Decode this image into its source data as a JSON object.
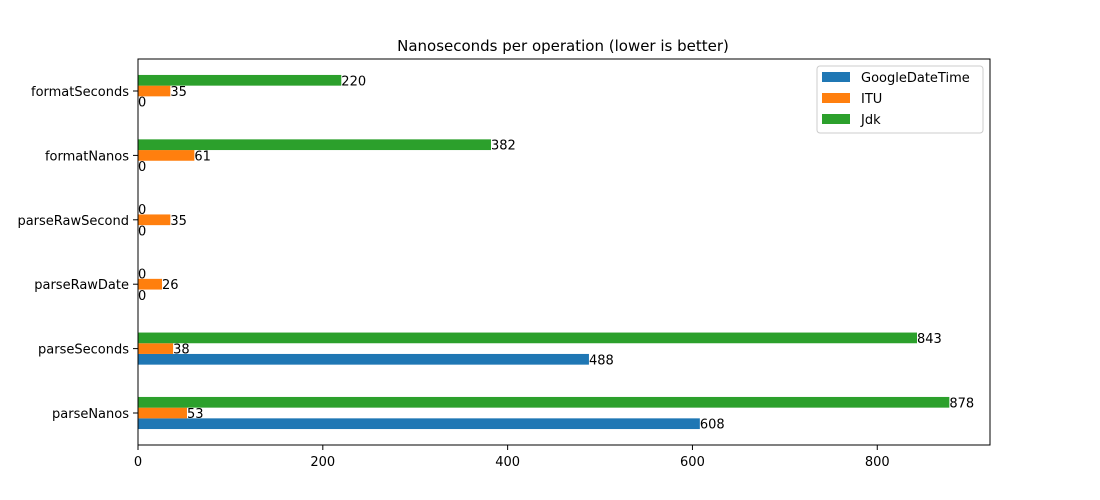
{
  "chart_data": {
    "type": "bar",
    "orientation": "horizontal",
    "title": "Nanoseconds per operation (lower is better)",
    "xlabel": "",
    "ylabel": "",
    "categories": [
      "parseNanos",
      "parseSeconds",
      "parseRawDate",
      "parseRawSecond",
      "formatNanos",
      "formatSeconds"
    ],
    "series": [
      {
        "name": "GoogleDateTime",
        "color": "#1f77b4",
        "values": [
          608,
          488,
          0,
          0,
          0,
          0
        ],
        "labels": [
          "608",
          "488",
          "0",
          "0",
          "0",
          "0"
        ]
      },
      {
        "name": "ITU",
        "color": "#ff7f0e",
        "values": [
          53,
          38,
          26,
          35,
          61,
          35
        ],
        "labels": [
          "53",
          "38",
          "26",
          "35",
          "61",
          "35"
        ]
      },
      {
        "name": "Jdk",
        "color": "#2ca02c",
        "values": [
          878,
          843,
          0,
          0,
          382,
          220
        ],
        "labels": [
          "878",
          "843",
          "0",
          "0",
          "382",
          "220"
        ]
      }
    ],
    "xlim": [
      0,
      922
    ],
    "xticks": [
      0,
      200,
      400,
      600,
      800
    ],
    "xtick_labels": [
      "0",
      "200",
      "400",
      "600",
      "800"
    ],
    "grid": false,
    "legend_position": "upper right"
  }
}
